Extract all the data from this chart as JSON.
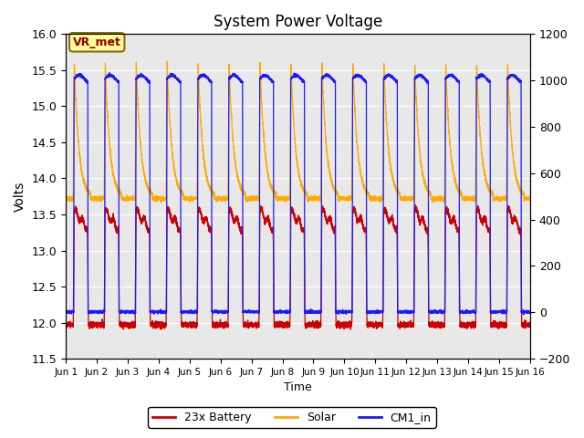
{
  "title": "System Power Voltage",
  "xlabel": "Time",
  "ylabel": "Volts",
  "left_ylim": [
    11.5,
    16.0
  ],
  "right_ylim": [
    -200,
    1200
  ],
  "left_yticks": [
    11.5,
    12.0,
    12.5,
    13.0,
    13.5,
    14.0,
    14.5,
    15.0,
    15.5,
    16.0
  ],
  "right_yticks": [
    -200,
    0,
    200,
    400,
    600,
    800,
    1000,
    1200
  ],
  "xtick_labels": [
    "Jun 1",
    "Jun 2",
    "Jun 3",
    "Jun 4",
    "Jun 5",
    "Jun 6",
    "Jun 7",
    "Jun 8",
    "Jun 9",
    "Jun 10",
    "Jun 11",
    "Jun 12",
    "Jun 13",
    "Jun 14",
    "Jun 15",
    "Jun 16"
  ],
  "colors": {
    "battery": "#cc0000",
    "solar": "#ffaa00",
    "cm1": "#1a1aff",
    "background": "#e8e8e8",
    "grid": "#ffffff"
  },
  "annotation_text": "VR_met",
  "legend_labels": [
    "23x Battery",
    "Solar",
    "CM1_in"
  ],
  "num_days": 15,
  "points_per_day": 480
}
